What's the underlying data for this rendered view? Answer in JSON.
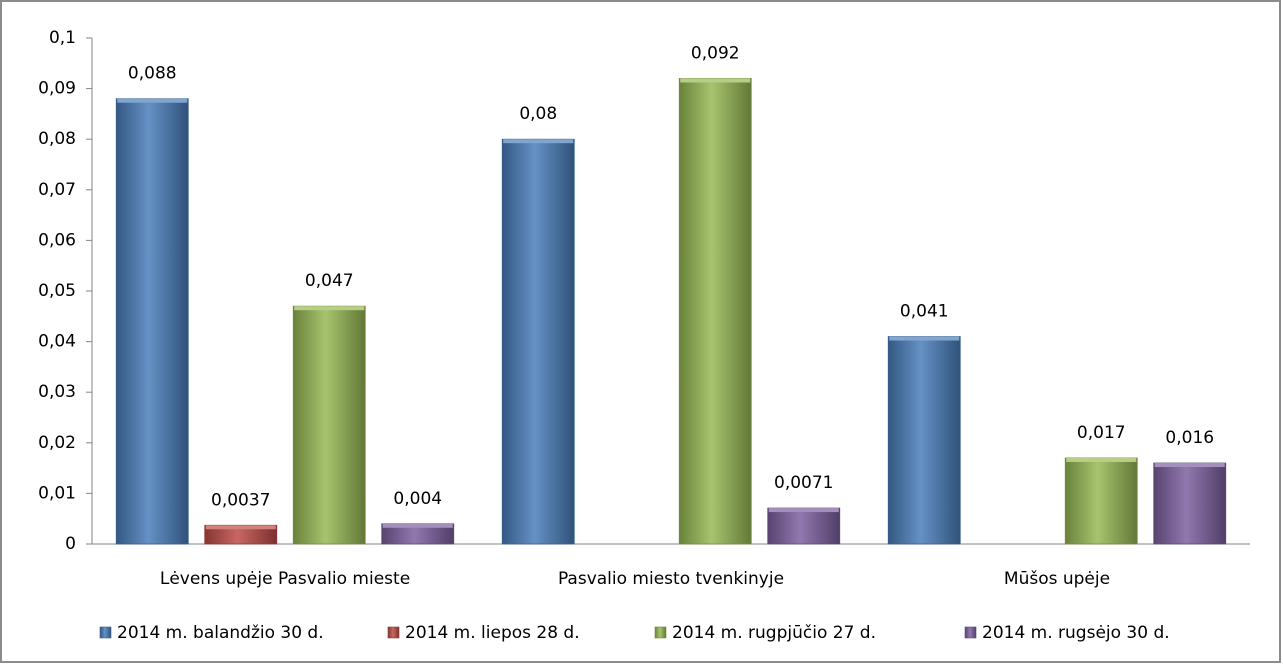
{
  "chart_data": {
    "type": "bar",
    "categories": [
      "Lėvens upėje Pasvalio mieste",
      "Pasvalio miesto tvenkinyje",
      "Mūšos upėje"
    ],
    "series": [
      {
        "name": "2014 m. balandžio 30 d.",
        "color": "#4a7ebb",
        "values": [
          0.088,
          0.08,
          0.041
        ],
        "value_labels": [
          "0,088",
          "0,08",
          "0,041"
        ]
      },
      {
        "name": "2014 m. liepos 28 d.",
        "color": "#be4b48",
        "values": [
          0.0037,
          null,
          null
        ],
        "value_labels": [
          "0,0037",
          null,
          null
        ]
      },
      {
        "name": "2014 m. rugpjūčio 27 d.",
        "color": "#98b954",
        "values": [
          0.047,
          0.092,
          0.017
        ],
        "value_labels": [
          "0,047",
          "0,092",
          "0,017"
        ]
      },
      {
        "name": "2014 m. rugsėjo 30 d.",
        "color": "#7d60a0",
        "values": [
          0.004,
          0.0071,
          0.016
        ],
        "value_labels": [
          "0,004",
          "0,0071",
          "0,016"
        ]
      }
    ],
    "ylim": [
      0,
      0.1
    ],
    "yticks": [
      0,
      {
        "value": 0.01,
        "label": "0,01"
      },
      {
        "value": 0.02,
        "label": "0,02"
      },
      {
        "value": 0.03,
        "label": "0,03"
      },
      {
        "value": 0.04,
        "label": "0,04"
      },
      {
        "value": 0.05,
        "label": "0,05"
      },
      {
        "value": 0.06,
        "label": "0,06"
      },
      {
        "value": 0.07,
        "label": "0,07"
      },
      {
        "value": 0.08,
        "label": "0,08"
      },
      {
        "value": 0.09,
        "label": "0,09"
      },
      {
        "value": 0.1,
        "label": "0,1"
      }
    ],
    "grid": false,
    "legend": "bottom"
  }
}
